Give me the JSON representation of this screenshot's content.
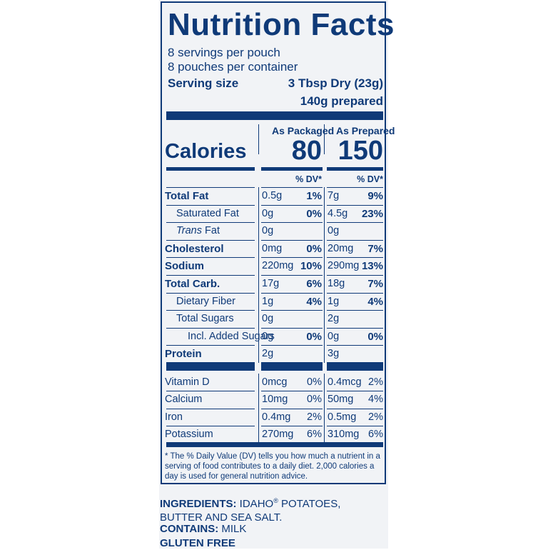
{
  "title": "Nutrition Facts",
  "servings_per_pouch": "8 servings per pouch",
  "pouches_per_container": "8 pouches per container",
  "serving_size_label": "Serving size",
  "serving_size_dry": "3 Tbsp Dry (23g)",
  "serving_size_prepared": "140g prepared",
  "columns": {
    "packaged": "As Packaged",
    "prepared": "As Prepared"
  },
  "calories": {
    "label": "Calories",
    "packaged": "80",
    "prepared": "150"
  },
  "dv_header": "% DV*",
  "nutrients": [
    {
      "name": "Total Fat",
      "amt1": "0.5g",
      "dv1": "1%",
      "amt2": "7g",
      "dv2": "9%"
    },
    {
      "name": "Saturated Fat",
      "amt1": "0g",
      "dv1": "0%",
      "amt2": "4.5g",
      "dv2": "23%"
    },
    {
      "name_italic": "Trans",
      "name": " Fat",
      "amt1": "0g",
      "dv1": "",
      "amt2": "0g",
      "dv2": ""
    },
    {
      "name": "Cholesterol",
      "amt1": "0mg",
      "dv1": "0%",
      "amt2": "20mg",
      "dv2": "7%"
    },
    {
      "name": "Sodium",
      "amt1": "220mg",
      "dv1": "10%",
      "amt2": "290mg",
      "dv2": "13%"
    },
    {
      "name": "Total Carb.",
      "amt1": "17g",
      "dv1": "6%",
      "amt2": "18g",
      "dv2": "7%"
    },
    {
      "name": "Dietary Fiber",
      "amt1": "1g",
      "dv1": "4%",
      "amt2": "1g",
      "dv2": "4%"
    },
    {
      "name": "Total Sugars",
      "amt1": "0g",
      "dv1": "",
      "amt2": "2g",
      "dv2": ""
    },
    {
      "name": "Incl. Added Sugars",
      "amt1": "0g",
      "dv1": "0%",
      "amt2": "0g",
      "dv2": "0%"
    },
    {
      "name": "Protein",
      "amt1": "2g",
      "dv1": "",
      "amt2": "3g",
      "dv2": ""
    }
  ],
  "vitamins": [
    {
      "name": "Vitamin D",
      "amt1": "0mcg",
      "dv1": "0%",
      "amt2": "0.4mcg",
      "dv2": "2%"
    },
    {
      "name": "Calcium",
      "amt1": "10mg",
      "dv1": "0%",
      "amt2": "50mg",
      "dv2": "4%"
    },
    {
      "name": "Iron",
      "amt1": "0.4mg",
      "dv1": "2%",
      "amt2": "0.5mg",
      "dv2": "2%"
    },
    {
      "name": "Potassium",
      "amt1": "270mg",
      "dv1": "6%",
      "amt2": "310mg",
      "dv2": "6%"
    }
  ],
  "footnote": "* The % Daily Value (DV) tells you how much a nutrient in a serving of food contributes to a daily diet. 2,000 calories a day is used for general nutrition advice.",
  "ingredients": {
    "label": "INGREDIENTS:",
    "text_1": " IDAHO",
    "reg": "®",
    "text_2": " POTATOES, BUTTER AND SEA SALT."
  },
  "contains": {
    "label": "CONTAINS:",
    "text": " MILK"
  },
  "gluten_free": "GLUTEN FREE"
}
